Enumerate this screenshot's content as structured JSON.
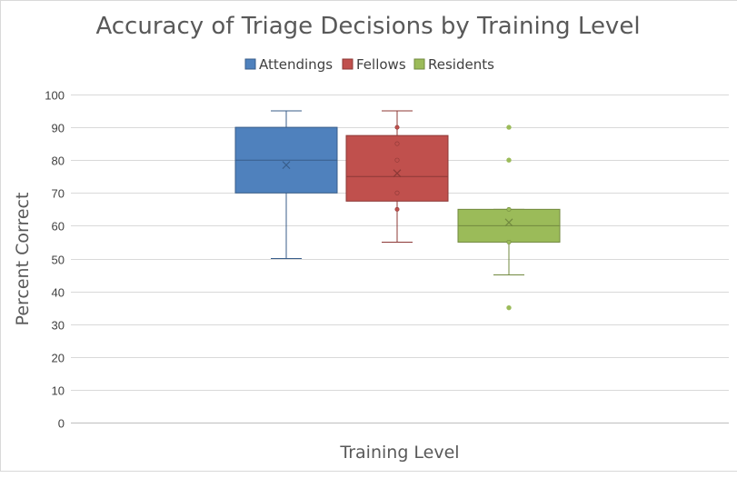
{
  "chart_data": {
    "type": "box",
    "title": "Accuracy of Triage Decisions by Training Level",
    "xlabel": "Training Level",
    "ylabel": "Percent Correct",
    "ylim": [
      0,
      100
    ],
    "yticks": [
      0,
      10,
      20,
      30,
      40,
      50,
      60,
      70,
      80,
      90,
      100
    ],
    "grid": true,
    "legend_position": "top",
    "series": [
      {
        "name": "Attendings",
        "color": "#4f81bd",
        "edge_color": "#385d8a",
        "whisker_low": 50,
        "q1": 70,
        "median": 80,
        "q3": 90,
        "whisker_high": 95,
        "mean": 78.5,
        "inner_points": [],
        "outliers": []
      },
      {
        "name": "Fellows",
        "color": "#c0504d",
        "edge_color": "#8c3836",
        "whisker_low": 55,
        "q1": 67.5,
        "median": 75,
        "q3": 87.5,
        "whisker_high": 95,
        "mean": 76,
        "inner_points": [
          90,
          85,
          80,
          70,
          65
        ],
        "outliers": []
      },
      {
        "name": "Residents",
        "color": "#9bbb59",
        "edge_color": "#71893f",
        "whisker_low": 45,
        "q1": 55,
        "median": 60,
        "q3": 65,
        "whisker_high": 65,
        "mean": 61,
        "inner_points": [
          65,
          55
        ],
        "outliers": [
          90,
          80,
          35
        ]
      }
    ]
  }
}
